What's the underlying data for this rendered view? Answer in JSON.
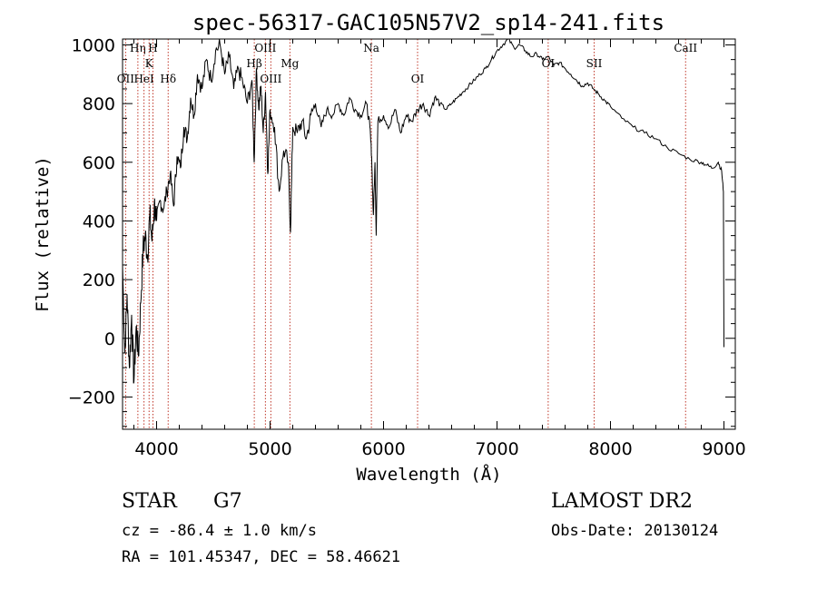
{
  "chart_data": {
    "type": "line",
    "title": "spec-56317-GAC105N57V2_sp14-241.fits",
    "xlabel": "Wavelength (Å)",
    "ylabel": "Flux (relative)",
    "xlim": [
      3700,
      9100
    ],
    "ylim": [
      -310,
      1020
    ],
    "x_ticks": [
      4000,
      5000,
      6000,
      7000,
      8000,
      9000
    ],
    "y_ticks": [
      -200,
      0,
      200,
      400,
      600,
      800,
      1000
    ],
    "grid": false,
    "series": [
      {
        "x": [
          3700,
          3720,
          3740,
          3760,
          3780,
          3800,
          3820,
          3840,
          3860,
          3880,
          3900,
          3920,
          3940,
          3960,
          3980,
          4000,
          4030,
          4060,
          4090,
          4120,
          4150,
          4180,
          4210,
          4240,
          4270,
          4300,
          4330,
          4360,
          4400,
          4440,
          4480,
          4520,
          4560,
          4600,
          4640,
          4680,
          4720,
          4760,
          4800,
          4840,
          4860,
          4880,
          4900,
          4920,
          4940,
          4960,
          4980,
          5000,
          5040,
          5080,
          5120,
          5160,
          5180,
          5200,
          5240,
          5280,
          5320,
          5360,
          5400,
          5450,
          5500,
          5550,
          5600,
          5650,
          5700,
          5750,
          5800,
          5850,
          5880,
          5895,
          5910,
          5925,
          5935,
          5950,
          6000,
          6050,
          6100,
          6150,
          6200,
          6250,
          6300,
          6350,
          6400,
          6450,
          6500,
          6550,
          6600,
          6650,
          6700,
          6750,
          6800,
          6850,
          6900,
          6950,
          7000,
          7050,
          7100,
          7150,
          7200,
          7250,
          7300,
          7350,
          7400,
          7450,
          7500,
          7550,
          7600,
          7650,
          7700,
          7750,
          7800,
          7850,
          7900,
          7950,
          8000,
          8100,
          8200,
          8300,
          8400,
          8500,
          8600,
          8700,
          8800,
          8850,
          8900,
          8950,
          8980,
          8995,
          9000
        ],
        "y": [
          250,
          -50,
          150,
          -100,
          80,
          -150,
          40,
          -60,
          120,
          300,
          350,
          280,
          420,
          330,
          460,
          400,
          470,
          440,
          500,
          560,
          450,
          620,
          580,
          720,
          680,
          820,
          760,
          900,
          850,
          950,
          880,
          980,
          1000,
          900,
          960,
          850,
          920,
          870,
          800,
          880,
          600,
          920,
          780,
          860,
          700,
          840,
          560,
          780,
          720,
          500,
          640,
          600,
          360,
          720,
          700,
          740,
          680,
          760,
          800,
          720,
          780,
          760,
          800,
          760,
          820,
          780,
          760,
          800,
          720,
          620,
          420,
          600,
          350,
          740,
          760,
          720,
          780,
          700,
          760,
          740,
          780,
          800,
          760,
          820,
          800,
          780,
          800,
          820,
          840,
          860,
          880,
          900,
          920,
          950,
          980,
          1000,
          1020,
          990,
          1000,
          980,
          960,
          970,
          950,
          960,
          930,
          940,
          920,
          900,
          880,
          860,
          870,
          850,
          830,
          810,
          790,
          750,
          720,
          700,
          680,
          650,
          630,
          610,
          600,
          590,
          580,
          600,
          570,
          500,
          -30
        ]
      }
    ],
    "line_markers": [
      {
        "label": "OII",
        "x": 3727
      },
      {
        "label": "Hη",
        "x": 3835
      },
      {
        "label": "HeI",
        "x": 3889
      },
      {
        "label": "K",
        "x": 3934
      },
      {
        "label": "H",
        "x": 3968
      },
      {
        "label": "Hδ",
        "x": 4102
      },
      {
        "label": "Hβ",
        "x": 4861
      },
      {
        "label": "OIII",
        "x": 4959
      },
      {
        "label": "OIII",
        "x": 5007
      },
      {
        "label": "Mg",
        "x": 5175
      },
      {
        "label": "Na",
        "x": 5893
      },
      {
        "label": "OI",
        "x": 6300
      },
      {
        "label": "OI",
        "x": 7451
      },
      {
        "label": "SII",
        "x": 7856
      },
      {
        "label": "CaII",
        "x": 8662
      }
    ]
  },
  "footer": {
    "class_label": "STAR",
    "subclass": "G7",
    "cz": "cz = -86.4 ± 1.0 km/s",
    "coords": "RA = 101.45347, DEC =  58.46621",
    "survey": "LAMOST DR2",
    "obs_date": "Obs-Date: 20130124"
  },
  "colors": {
    "line": "#000000",
    "marker": "#c0392b"
  }
}
